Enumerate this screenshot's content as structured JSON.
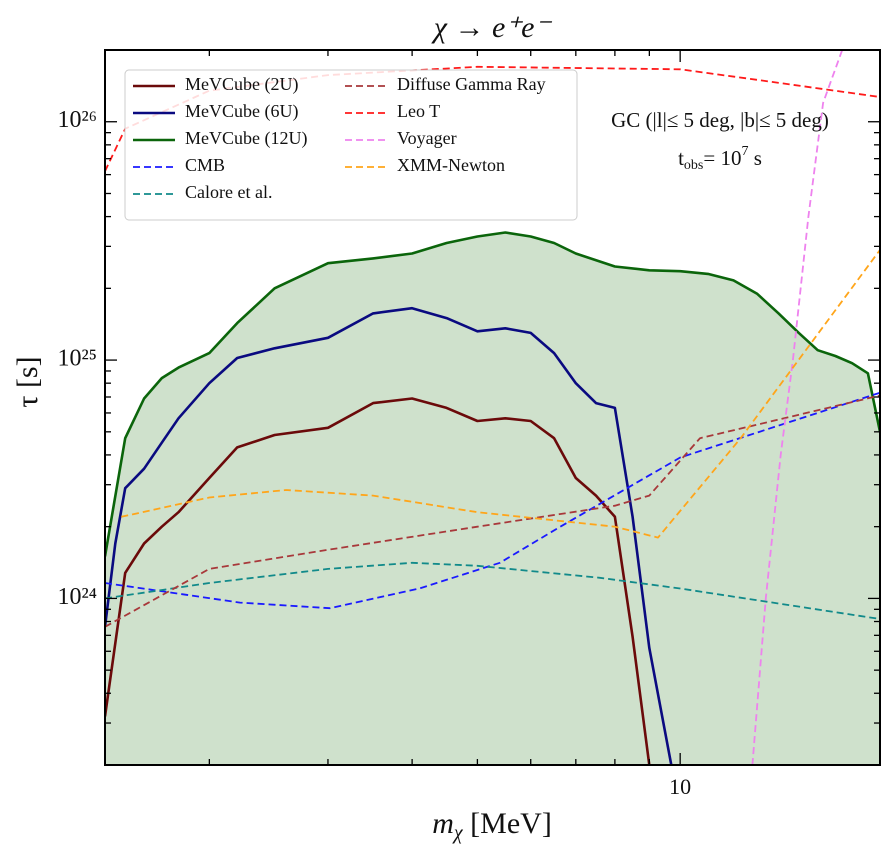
{
  "chart_data": {
    "type": "line",
    "title": "χ → e⁺e⁻",
    "xlabel": [
      "m",
      "χ",
      " [MeV]"
    ],
    "ylabel": "τ [s]",
    "annotations": [
      "GC (|l|≤ 5 deg, |b|≤ 5 deg)",
      [
        "t",
        "obs",
        "= 10",
        "7",
        " s"
      ]
    ],
    "xscale": "log",
    "yscale": "log",
    "xlim": [
      1.4,
      19.8
    ],
    "ylim": [
      2e+23,
      2e+26
    ],
    "xticks": [
      10
    ],
    "xminor_ticks": [
      2,
      3,
      4,
      5,
      6,
      7,
      8,
      9
    ],
    "yticks": [
      {
        "value": 1e+24,
        "label": "10²⁴"
      },
      {
        "value": 1e+25,
        "label": "10²⁵"
      },
      {
        "value": 1e+26,
        "label": "10²⁶"
      }
    ],
    "yminor_ticks": [
      3e+23,
      4e+23,
      5e+23,
      6e+23,
      7e+23,
      8e+23,
      9e+23,
      2e+24,
      3e+24,
      4e+24,
      5e+24,
      6e+24,
      7e+24,
      8e+24,
      9e+24,
      2e+25,
      3e+25,
      4e+25,
      5e+25,
      6e+25,
      7e+25,
      8e+25,
      9e+25
    ],
    "legend": {
      "loc": "upper left",
      "ncol": 2
    },
    "series": [
      {
        "name": "MeVCube (2U)",
        "color": "#6b0a0a",
        "fill": "#b28c94",
        "dashed": false,
        "x": [
          1.4,
          1.5,
          1.6,
          1.7,
          1.8,
          2,
          2.2,
          2.5,
          3,
          3.5,
          4,
          4.5,
          5,
          5.5,
          6,
          6.5,
          7,
          7.5,
          8,
          8.5,
          9
        ],
        "values": [
          3.2e+23,
          1.28e+24,
          1.7e+24,
          2e+24,
          2.3e+24,
          3.2e+24,
          4.3e+24,
          4.85e+24,
          5.2e+24,
          6.6e+24,
          6.9e+24,
          6.3e+24,
          5.55e+24,
          5.7e+24,
          5.55e+24,
          4.7e+24,
          3.2e+24,
          2.7e+24,
          2.2e+24,
          6.9e+23,
          2e+23
        ]
      },
      {
        "name": "MeVCube (6U)",
        "color": "#0a0a80",
        "fill": "#a3b7c4",
        "dashed": false,
        "x": [
          1.4,
          1.45,
          1.5,
          1.6,
          1.7,
          1.8,
          2,
          2.2,
          2.5,
          3,
          3.5,
          4,
          4.5,
          5,
          5.5,
          6,
          6.5,
          7,
          7.5,
          8,
          8.5,
          9,
          9.7
        ],
        "values": [
          7.6e+23,
          1.7e+24,
          2.9e+24,
          3.5e+24,
          4.5e+24,
          5.7e+24,
          8e+24,
          1.02e+25,
          1.12e+25,
          1.24e+25,
          1.57e+25,
          1.65e+25,
          1.5e+25,
          1.32e+25,
          1.36e+25,
          1.3e+25,
          1.07e+25,
          8e+24,
          6.6e+24,
          6.3e+24,
          2.2e+24,
          6.2e+23,
          2e+23
        ]
      },
      {
        "name": "MeVCube (12U)",
        "color": "#0b650b",
        "fill": "#cfe1cc",
        "dashed": false,
        "x": [
          1.4,
          1.5,
          1.6,
          1.7,
          1.8,
          2,
          2.2,
          2.5,
          3,
          3.5,
          4,
          4.5,
          5,
          5.5,
          6,
          6.5,
          7,
          8,
          9,
          10,
          11,
          12,
          13,
          14,
          15,
          16,
          17,
          18,
          19,
          19.8
        ],
        "values": [
          1.5e+24,
          4.7e+24,
          6.9e+24,
          8.4e+24,
          9.3e+24,
          1.07e+25,
          1.43e+25,
          2e+25,
          2.55e+25,
          2.67e+25,
          2.8e+25,
          3.1e+25,
          3.3e+25,
          3.43e+25,
          3.3e+25,
          3.1e+25,
          2.8e+25,
          2.47e+25,
          2.38e+25,
          2.36e+25,
          2.3e+25,
          2.16e+25,
          1.9e+25,
          1.57e+25,
          1.3e+25,
          1.1e+25,
          1.04e+25,
          9.7e+24,
          8.8e+24,
          5e+24
        ]
      },
      {
        "name": "CMB",
        "color": "#1a1aff",
        "dashed": true,
        "x": [
          1.4,
          2.22,
          3.02,
          4.1,
          5.4,
          6.6,
          10,
          19.8
        ],
        "values": [
          1.16e+24,
          9.6e+23,
          9.1e+23,
          1.1e+24,
          1.41e+24,
          1.98e+24,
          3.9e+24,
          7.3e+24
        ]
      },
      {
        "name": "Calore et al.",
        "color": "#118a8a",
        "dashed": true,
        "x": [
          1.4,
          2,
          3,
          4,
          5,
          7.6,
          10,
          19.8
        ],
        "values": [
          1e+24,
          1.16e+24,
          1.33e+24,
          1.41e+24,
          1.37e+24,
          1.22e+24,
          1.1e+24,
          8.2e+23
        ]
      },
      {
        "name": "Diffuse Gamma Ray",
        "color": "#a8383a",
        "dashed": true,
        "x": [
          1.4,
          2,
          3,
          5,
          8,
          9,
          10.7,
          19.8
        ],
        "values": [
          7.6e+23,
          1.33e+24,
          1.6e+24,
          2e+24,
          2.45e+24,
          2.7e+24,
          4.7e+24,
          7.1e+24
        ]
      },
      {
        "name": "Leo T",
        "color": "#ff1a1a",
        "dashed": true,
        "x": [
          1.4,
          1.5,
          2,
          3,
          5,
          10,
          13,
          19.8
        ],
        "values": [
          6.2e+25,
          9.35e+25,
          1.35e+26,
          1.57e+26,
          1.7e+26,
          1.66e+26,
          1.5e+26,
          1.27e+26
        ]
      },
      {
        "name": "Voyager",
        "color": "#ee82ee",
        "dashed": true,
        "x": [
          12.8,
          13.4,
          14.1,
          14.7,
          15.5,
          16.3,
          17.4
        ],
        "values": [
          2e+23,
          1e+24,
          4e+24,
          1e+25,
          4e+25,
          1.2e+26,
          2e+26
        ]
      },
      {
        "name": "XMM-Newton",
        "color": "#ffa51a",
        "dashed": true,
        "x": [
          1.48,
          2,
          2.6,
          3.5,
          5,
          8,
          9.27,
          12.3,
          19.8
        ],
        "values": [
          2.2e+24,
          2.65e+24,
          2.85e+24,
          2.7e+24,
          2.3e+24,
          2e+24,
          1.8e+24,
          4.7e+24,
          2.9e+25
        ]
      }
    ]
  }
}
